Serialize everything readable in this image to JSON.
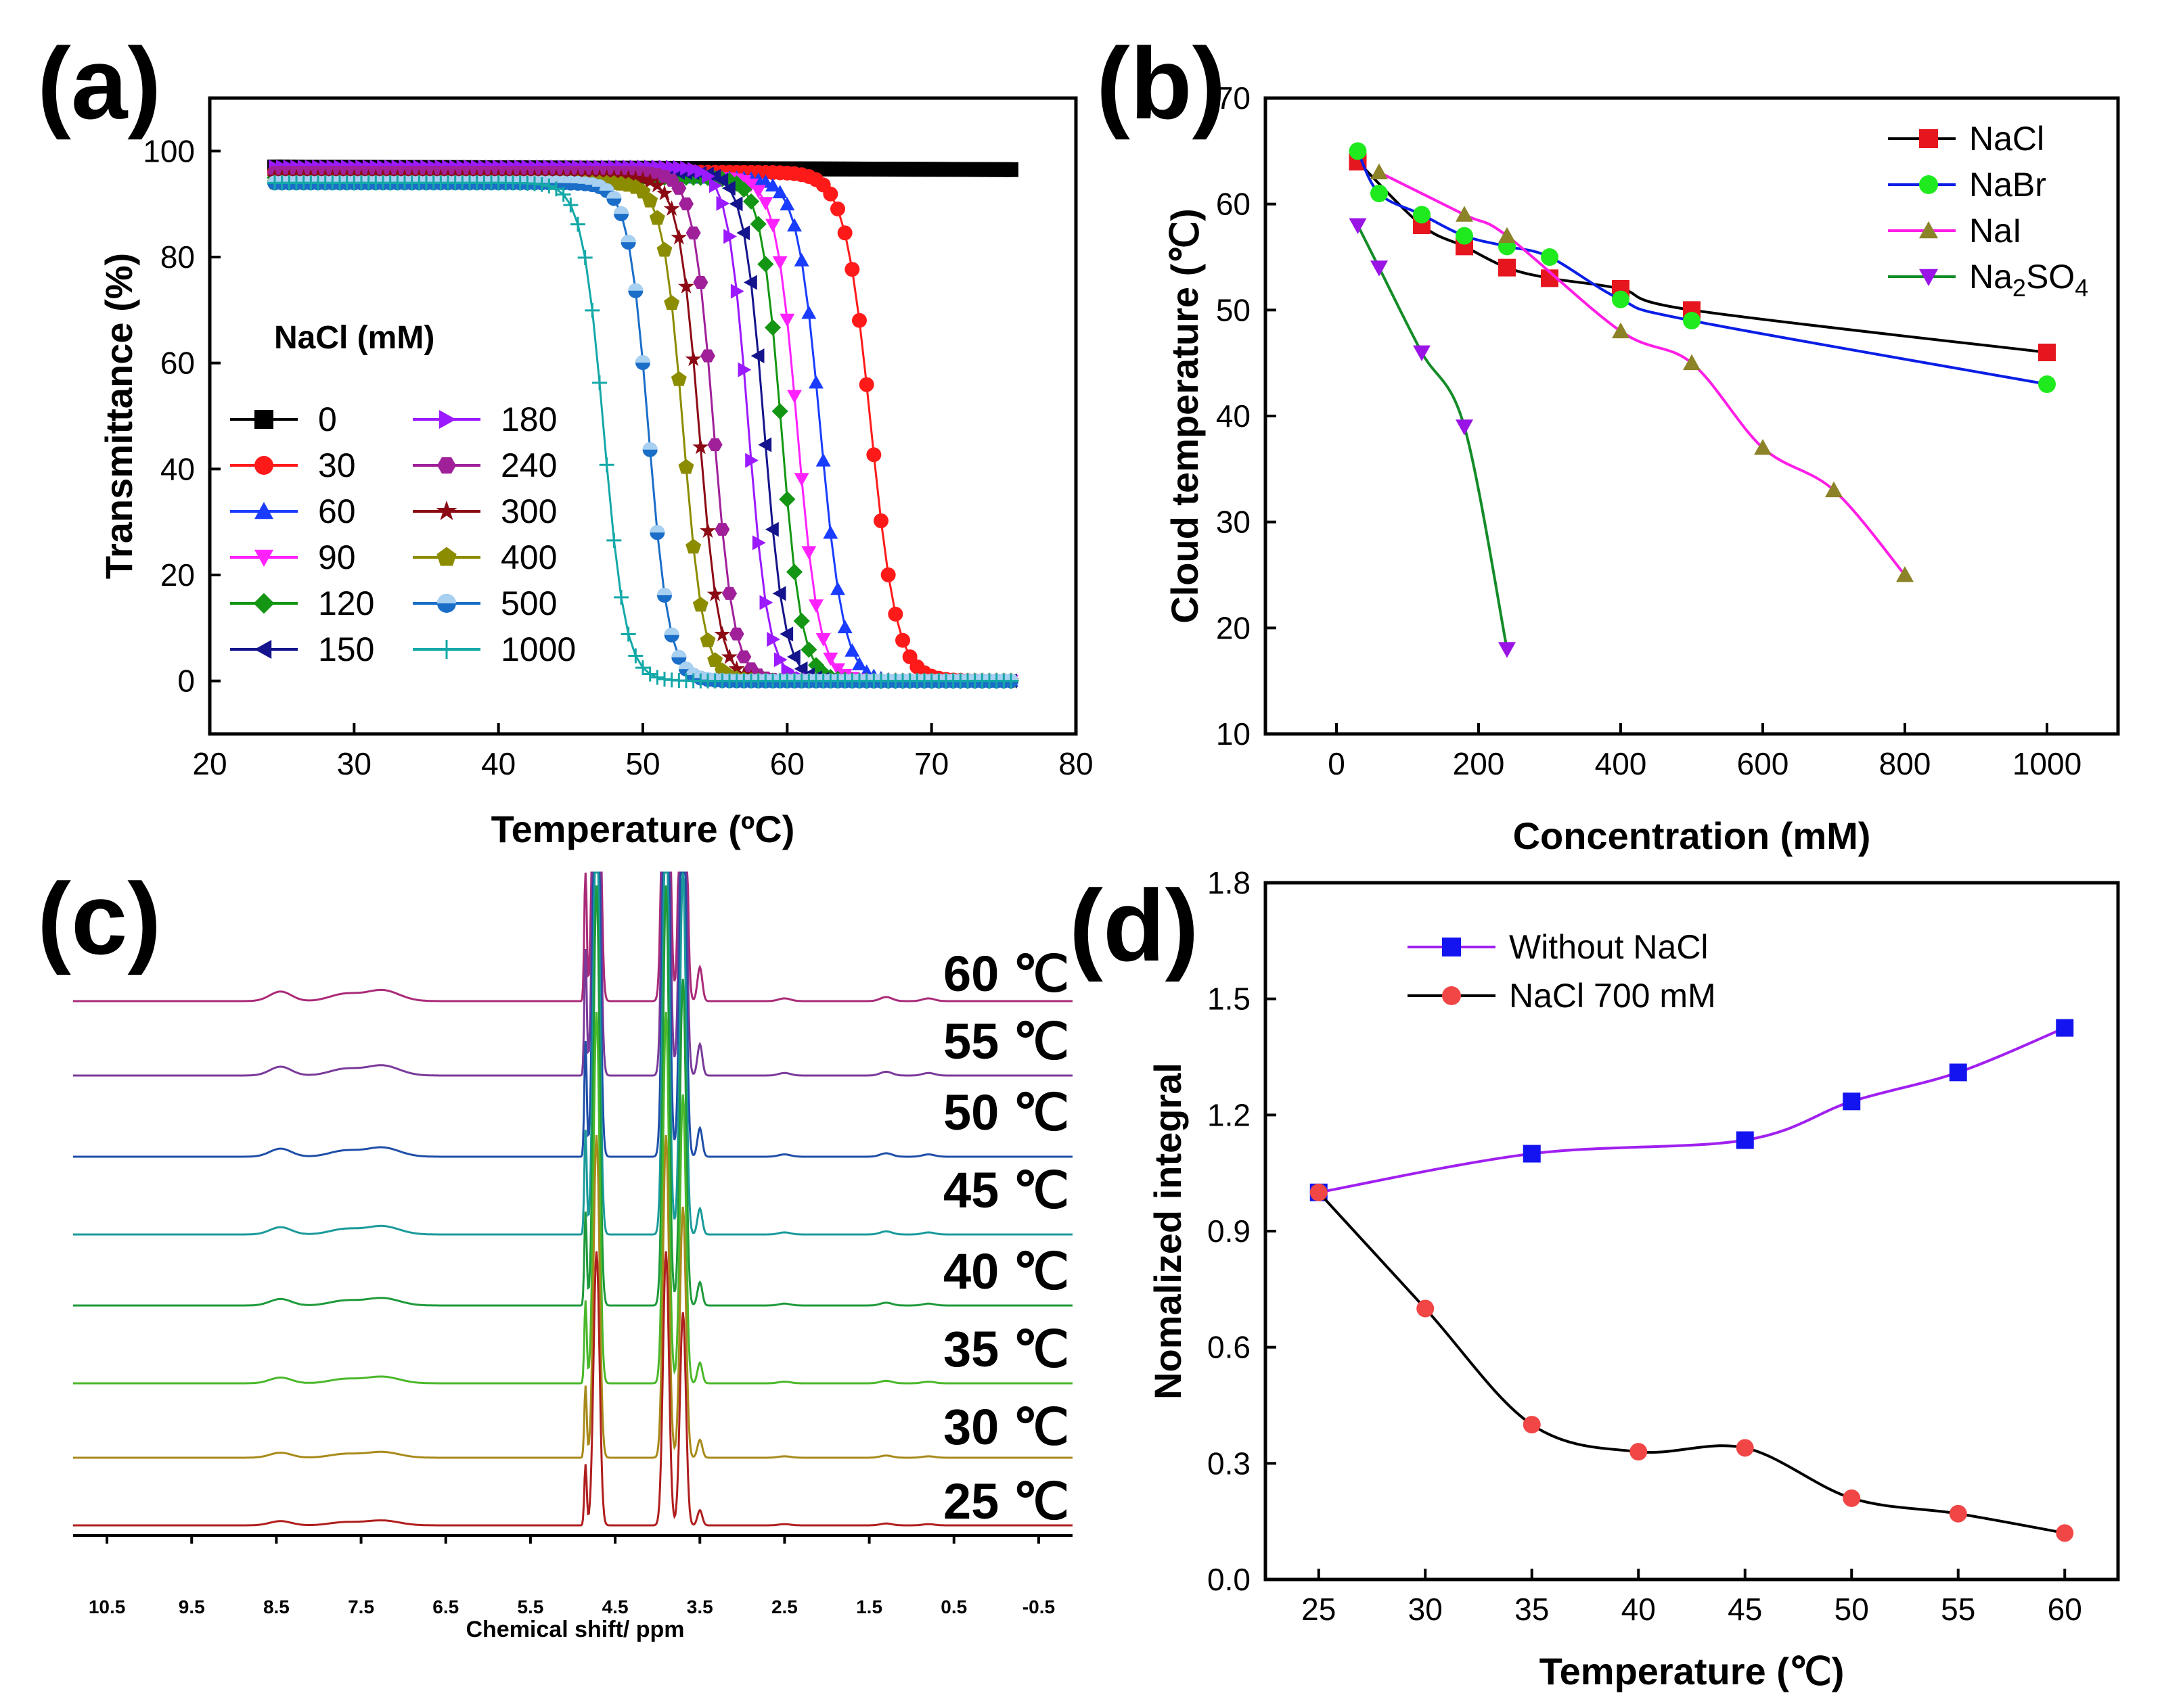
{
  "panels": {
    "a": "(a)",
    "b": "(b)",
    "c": "(c)",
    "d": "(d)"
  },
  "chart_data": [
    {
      "id": "a",
      "type": "line",
      "xlabel": "Temperature (ºC)",
      "ylabel": "Transmittance (%)",
      "xlim": [
        20,
        80
      ],
      "ylim": [
        -10,
        110
      ],
      "xticks": [
        20,
        30,
        40,
        50,
        60,
        70,
        80
      ],
      "yticks": [
        0,
        20,
        40,
        60,
        80,
        100
      ],
      "legend_title": "NaCl (mM)",
      "legend_position": "left",
      "x_range": [
        24.5,
        75.5
      ],
      "series": [
        {
          "name": "0",
          "marker": "square",
          "color": "#000000",
          "midpoint": null,
          "high": 97,
          "width": 0
        },
        {
          "name": "30",
          "marker": "circle",
          "color": "#ff1a1a",
          "midpoint": 65.8,
          "high": 96,
          "width": 0.9
        },
        {
          "name": "60",
          "marker": "triangle-up",
          "color": "#1a3cff",
          "midpoint": 62.3,
          "high": 95,
          "width": 0.8
        },
        {
          "name": "90",
          "marker": "triangle-down",
          "color": "#ff22ff",
          "midpoint": 60.7,
          "high": 95,
          "width": 0.75
        },
        {
          "name": "120",
          "marker": "diamond",
          "color": "#149614",
          "midpoint": 59.6,
          "high": 95,
          "width": 0.7
        },
        {
          "name": "150",
          "marker": "triangle-left",
          "color": "#14148c",
          "midpoint": 58.4,
          "high": 96,
          "width": 0.7
        },
        {
          "name": "180",
          "marker": "triangle-right",
          "color": "#9b1aff",
          "midpoint": 57.3,
          "high": 97,
          "width": 0.7
        },
        {
          "name": "240",
          "marker": "hexagon",
          "color": "#a0209a",
          "midpoint": 54.9,
          "high": 96,
          "width": 0.7
        },
        {
          "name": "300",
          "marker": "star",
          "color": "#8b0a14",
          "midpoint": 53.9,
          "high": 95,
          "width": 0.7
        },
        {
          "name": "400",
          "marker": "pentagon",
          "color": "#8c8c00",
          "midpoint": 52.8,
          "high": 94,
          "width": 0.7
        },
        {
          "name": "500",
          "marker": "circle-half",
          "color": "#1a6ec8",
          "midpoint": 50.4,
          "high": 94,
          "width": 0.7
        },
        {
          "name": "1000",
          "marker": "plus",
          "color": "#14a8a8",
          "midpoint": 47.3,
          "high": 94,
          "width": 0.75
        }
      ]
    },
    {
      "id": "b",
      "type": "line",
      "xlabel": "Concentration (mM)",
      "ylabel": "Cloud temperature (℃)",
      "xlim": [
        -100,
        1100
      ],
      "ylim": [
        10,
        70
      ],
      "xticks": [
        0,
        200,
        400,
        600,
        800,
        1000
      ],
      "yticks": [
        10,
        20,
        30,
        40,
        50,
        60,
        70
      ],
      "legend_position": "top-right",
      "series": [
        {
          "name": "NaCl",
          "marker": "square",
          "color": "#e6161f",
          "line": "#000000",
          "x": [
            30,
            120,
            180,
            240,
            300,
            400,
            500,
            1000
          ],
          "y": [
            64,
            58,
            56,
            54,
            53,
            52,
            50,
            46
          ]
        },
        {
          "name": "NaBr",
          "marker": "circle",
          "color": "#1eea1e",
          "line": "#0a1ee6",
          "x": [
            30,
            60,
            120,
            180,
            240,
            300,
            400,
            500,
            1000
          ],
          "y": [
            65,
            61,
            59,
            57,
            56,
            55,
            51,
            49,
            43
          ]
        },
        {
          "name": "NaI",
          "marker": "triangle-up",
          "color": "#8c8228",
          "line": "#ff1ee6",
          "x": [
            60,
            180,
            240,
            400,
            500,
            600,
            700,
            800
          ],
          "y": [
            63,
            59,
            57,
            48,
            45,
            37,
            33,
            25
          ]
        },
        {
          "name": "Na2SO4",
          "marker": "triangle-down",
          "color": "#9b14e6",
          "line": "#148c28",
          "x": [
            30,
            60,
            120,
            180,
            240
          ],
          "y": [
            58,
            54,
            46,
            39,
            18
          ]
        }
      ]
    },
    {
      "id": "c",
      "type": "line",
      "xlabel": "Chemical shift/ ppm",
      "xticks": [
        "10.5",
        "9.5",
        "8.5",
        "7.5",
        "6.5",
        "5.5",
        "4.5",
        "3.5",
        "2.5",
        "1.5",
        "0.5",
        "-0.5"
      ],
      "xlim": [
        10.9,
        -0.9
      ],
      "series": [
        {
          "name": "60 ℃",
          "color": "#aa2a78"
        },
        {
          "name": "55 ℃",
          "color": "#7a3a9a"
        },
        {
          "name": "50 ℃",
          "color": "#1e4ea8"
        },
        {
          "name": "45 ℃",
          "color": "#1a9a9a"
        },
        {
          "name": "40 ℃",
          "color": "#1e9a3a"
        },
        {
          "name": "35 ℃",
          "color": "#4ab82a"
        },
        {
          "name": "30 ℃",
          "color": "#a88a1a"
        },
        {
          "name": "25 ℃",
          "color": "#b01e1e"
        }
      ]
    },
    {
      "id": "d",
      "type": "line",
      "xlabel": "Temperature (℃)",
      "ylabel": "Nomalized integral",
      "xlim": [
        22.5,
        62.5
      ],
      "ylim": [
        0.0,
        1.8
      ],
      "xticks": [
        25,
        30,
        35,
        40,
        45,
        50,
        55,
        60
      ],
      "yticks": [
        "0.0",
        "0.3",
        "0.6",
        "0.9",
        "1.2",
        "1.5",
        "1.8"
      ],
      "legend_position": "top-left",
      "series": [
        {
          "name": "Without NaCl",
          "marker": "square",
          "color": "#1414f0",
          "line": "#a020f0",
          "x": [
            25,
            35,
            45,
            50,
            55,
            60
          ],
          "y": [
            1.0,
            1.1,
            1.135,
            1.235,
            1.31,
            1.425
          ]
        },
        {
          "name": "NaCl 700 mM",
          "marker": "circle",
          "color": "#f04646",
          "line": "#000000",
          "x": [
            25,
            30,
            35,
            40,
            45,
            50,
            55,
            60
          ],
          "y": [
            1.0,
            0.7,
            0.4,
            0.33,
            0.34,
            0.21,
            0.17,
            0.12
          ]
        }
      ]
    }
  ]
}
